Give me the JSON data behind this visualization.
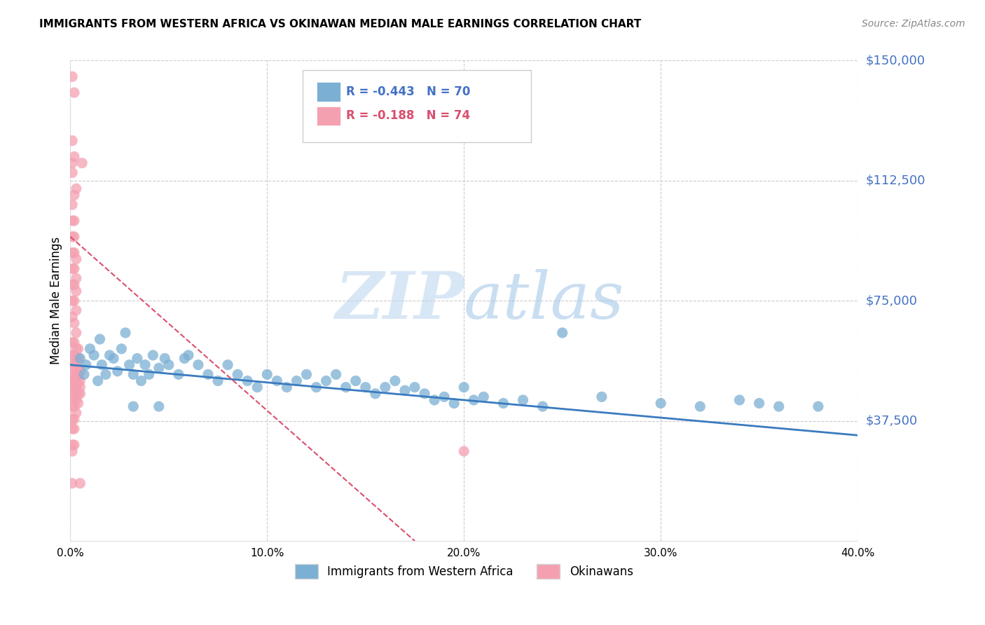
{
  "title": "IMMIGRANTS FROM WESTERN AFRICA VS OKINAWAN MEDIAN MALE EARNINGS CORRELATION CHART",
  "source": "Source: ZipAtlas.com",
  "ylabel": "Median Male Earnings",
  "yticks": [
    0,
    37500,
    75000,
    112500,
    150000
  ],
  "ytick_labels": [
    "",
    "$37,500",
    "$75,000",
    "$112,500",
    "$150,000"
  ],
  "xlim": [
    0.0,
    0.4
  ],
  "ylim": [
    0,
    150000
  ],
  "blue_R": -0.443,
  "blue_N": 70,
  "pink_R": -0.188,
  "pink_N": 74,
  "blue_color": "#7bafd4",
  "pink_color": "#f4a0b0",
  "blue_line_color": "#3a7bbf",
  "pink_line_color": "#d94f6e",
  "watermark_zip": "ZIP",
  "watermark_atlas": "atlas",
  "legend_label_blue": "Immigrants from Western Africa",
  "legend_label_pink": "Okinawans",
  "blue_scatter": [
    [
      0.005,
      57000
    ],
    [
      0.007,
      52000
    ],
    [
      0.008,
      55000
    ],
    [
      0.01,
      60000
    ],
    [
      0.012,
      58000
    ],
    [
      0.014,
      50000
    ],
    [
      0.015,
      63000
    ],
    [
      0.016,
      55000
    ],
    [
      0.018,
      52000
    ],
    [
      0.02,
      58000
    ],
    [
      0.022,
      57000
    ],
    [
      0.024,
      53000
    ],
    [
      0.026,
      60000
    ],
    [
      0.028,
      65000
    ],
    [
      0.03,
      55000
    ],
    [
      0.032,
      52000
    ],
    [
      0.034,
      57000
    ],
    [
      0.036,
      50000
    ],
    [
      0.038,
      55000
    ],
    [
      0.04,
      52000
    ],
    [
      0.042,
      58000
    ],
    [
      0.045,
      54000
    ],
    [
      0.048,
      57000
    ],
    [
      0.05,
      55000
    ],
    [
      0.055,
      52000
    ],
    [
      0.058,
      57000
    ],
    [
      0.06,
      58000
    ],
    [
      0.065,
      55000
    ],
    [
      0.07,
      52000
    ],
    [
      0.075,
      50000
    ],
    [
      0.08,
      55000
    ],
    [
      0.085,
      52000
    ],
    [
      0.09,
      50000
    ],
    [
      0.095,
      48000
    ],
    [
      0.1,
      52000
    ],
    [
      0.105,
      50000
    ],
    [
      0.11,
      48000
    ],
    [
      0.115,
      50000
    ],
    [
      0.12,
      52000
    ],
    [
      0.125,
      48000
    ],
    [
      0.13,
      50000
    ],
    [
      0.135,
      52000
    ],
    [
      0.14,
      48000
    ],
    [
      0.145,
      50000
    ],
    [
      0.15,
      48000
    ],
    [
      0.155,
      46000
    ],
    [
      0.16,
      48000
    ],
    [
      0.165,
      50000
    ],
    [
      0.17,
      47000
    ],
    [
      0.175,
      48000
    ],
    [
      0.18,
      46000
    ],
    [
      0.185,
      44000
    ],
    [
      0.19,
      45000
    ],
    [
      0.195,
      43000
    ],
    [
      0.2,
      48000
    ],
    [
      0.205,
      44000
    ],
    [
      0.21,
      45000
    ],
    [
      0.22,
      43000
    ],
    [
      0.23,
      44000
    ],
    [
      0.24,
      42000
    ],
    [
      0.25,
      65000
    ],
    [
      0.27,
      45000
    ],
    [
      0.3,
      43000
    ],
    [
      0.32,
      42000
    ],
    [
      0.34,
      44000
    ],
    [
      0.35,
      43000
    ],
    [
      0.36,
      42000
    ],
    [
      0.38,
      42000
    ],
    [
      0.032,
      42000
    ],
    [
      0.045,
      42000
    ]
  ],
  "pink_scatter": [
    [
      0.001,
      145000
    ],
    [
      0.002,
      140000
    ],
    [
      0.001,
      125000
    ],
    [
      0.002,
      120000
    ],
    [
      0.001,
      115000
    ],
    [
      0.001,
      118000
    ],
    [
      0.001,
      105000
    ],
    [
      0.002,
      108000
    ],
    [
      0.003,
      110000
    ],
    [
      0.001,
      100000
    ],
    [
      0.002,
      100000
    ],
    [
      0.001,
      95000
    ],
    [
      0.002,
      95000
    ],
    [
      0.001,
      90000
    ],
    [
      0.002,
      90000
    ],
    [
      0.003,
      88000
    ],
    [
      0.001,
      85000
    ],
    [
      0.002,
      85000
    ],
    [
      0.003,
      82000
    ],
    [
      0.001,
      80000
    ],
    [
      0.002,
      80000
    ],
    [
      0.003,
      78000
    ],
    [
      0.001,
      75000
    ],
    [
      0.002,
      75000
    ],
    [
      0.003,
      72000
    ],
    [
      0.001,
      70000
    ],
    [
      0.002,
      68000
    ],
    [
      0.003,
      65000
    ],
    [
      0.001,
      62000
    ],
    [
      0.002,
      62000
    ],
    [
      0.003,
      60000
    ],
    [
      0.004,
      60000
    ],
    [
      0.001,
      58000
    ],
    [
      0.002,
      58000
    ],
    [
      0.003,
      57000
    ],
    [
      0.004,
      57000
    ],
    [
      0.001,
      55000
    ],
    [
      0.002,
      55000
    ],
    [
      0.003,
      54000
    ],
    [
      0.004,
      54000
    ],
    [
      0.005,
      53000
    ],
    [
      0.001,
      52000
    ],
    [
      0.002,
      52000
    ],
    [
      0.003,
      51000
    ],
    [
      0.004,
      51000
    ],
    [
      0.005,
      50000
    ],
    [
      0.001,
      50000
    ],
    [
      0.002,
      50000
    ],
    [
      0.003,
      49000
    ],
    [
      0.004,
      49000
    ],
    [
      0.005,
      48000
    ],
    [
      0.001,
      48000
    ],
    [
      0.002,
      47000
    ],
    [
      0.003,
      47000
    ],
    [
      0.004,
      46000
    ],
    [
      0.005,
      46000
    ],
    [
      0.001,
      45000
    ],
    [
      0.002,
      45000
    ],
    [
      0.003,
      44000
    ],
    [
      0.004,
      43000
    ],
    [
      0.001,
      42000
    ],
    [
      0.002,
      42000
    ],
    [
      0.003,
      40000
    ],
    [
      0.001,
      38000
    ],
    [
      0.002,
      38000
    ],
    [
      0.001,
      35000
    ],
    [
      0.002,
      35000
    ],
    [
      0.001,
      30000
    ],
    [
      0.002,
      30000
    ],
    [
      0.001,
      18000
    ],
    [
      0.006,
      118000
    ],
    [
      0.001,
      28000
    ],
    [
      0.2,
      28000
    ],
    [
      0.005,
      18000
    ]
  ],
  "blue_trend_x": [
    0.0,
    0.4
  ],
  "blue_trend_y": [
    55000,
    33000
  ],
  "pink_trend_x": [
    0.0,
    0.175
  ],
  "pink_trend_y": [
    95000,
    0
  ],
  "xtick_positions": [
    0.0,
    0.1,
    0.2,
    0.3,
    0.4
  ],
  "xtick_labels": [
    "0.0%",
    "10.0%",
    "20.0%",
    "30.0%",
    "40.0%"
  ]
}
